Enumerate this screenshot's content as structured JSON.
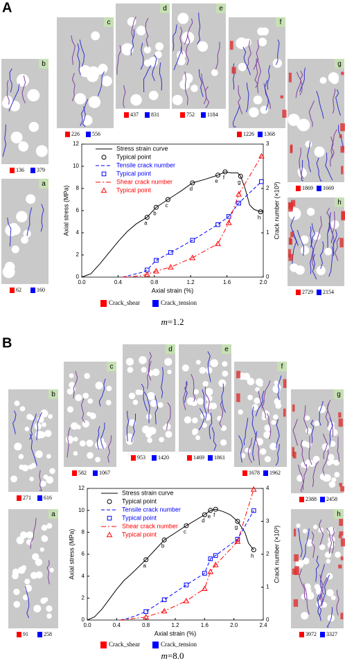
{
  "panels": [
    {
      "label": "A",
      "caption_var": "m",
      "caption_value": "=1.2",
      "crack_legend": [
        {
          "name": "Crack_shear",
          "color": "#ff0000"
        },
        {
          "name": "Crack_tension",
          "color": "#0000ff"
        }
      ],
      "specimens": [
        {
          "label": "a",
          "shear": 62,
          "tension": 160
        },
        {
          "label": "b",
          "shear": 136,
          "tension": 379
        },
        {
          "label": "c",
          "shear": 226,
          "tension": 556
        },
        {
          "label": "d",
          "shear": 437,
          "tension": 831
        },
        {
          "label": "e",
          "shear": 752,
          "tension": 1184
        },
        {
          "label": "f",
          "shear": 1226,
          "tension": 1368
        },
        {
          "label": "g",
          "shear": 1869,
          "tension": 1669
        },
        {
          "label": "h",
          "shear": 2729,
          "tension": 2154
        }
      ]
    },
    {
      "label": "B",
      "caption_var": "m",
      "caption_value": "=8.0",
      "crack_legend": [
        {
          "name": "Crack_shear",
          "color": "#ff0000"
        },
        {
          "name": "Crack_tension",
          "color": "#0000ff"
        }
      ],
      "specimens": [
        {
          "label": "a",
          "shear": 91,
          "tension": 258
        },
        {
          "label": "b",
          "shear": 271,
          "tension": 616
        },
        {
          "label": "c",
          "shear": 582,
          "tension": 1067
        },
        {
          "label": "d",
          "shear": 953,
          "tension": 1420
        },
        {
          "label": "e",
          "shear": 1469,
          "tension": 1861
        },
        {
          "label": "f",
          "shear": 1678,
          "tension": 1962
        },
        {
          "label": "g",
          "shear": 2388,
          "tension": 2458
        },
        {
          "label": "h",
          "shear": 3972,
          "tension": 3327
        }
      ]
    }
  ],
  "chart_data": [
    {
      "type": "line",
      "x_label": "Axial strain (%)",
      "y_label": "Axial stress (MPa)",
      "y2_label": "Crack number (×10³)",
      "xlim": [
        0,
        2.0
      ],
      "xticks": [
        {
          "value": 0,
          "label": "0.0"
        },
        0.4,
        0.8,
        1.2,
        1.6,
        {
          "value": 2.0,
          "label": "2.0"
        }
      ],
      "ylim": [
        0,
        12
      ],
      "yticks": [
        0,
        2,
        4,
        6,
        8,
        10,
        12
      ],
      "y2lim": [
        0,
        3
      ],
      "y2ticks": [
        0,
        1,
        2,
        3
      ],
      "series": [
        {
          "name": "Stress strain curve",
          "color": "#000000",
          "style": "solid",
          "x": [
            0,
            0.1,
            0.2,
            0.3,
            0.4,
            0.5,
            0.6,
            0.72,
            0.82,
            0.95,
            1.1,
            1.22,
            1.35,
            1.5,
            1.58,
            1.65,
            1.72,
            1.75,
            1.8,
            1.85,
            1.9,
            1.97,
            2.0
          ],
          "values": [
            0,
            0.3,
            1.2,
            2.2,
            3.2,
            4.1,
            4.8,
            5.4,
            6.3,
            7.0,
            7.8,
            8.5,
            8.8,
            9.2,
            9.5,
            9.4,
            9.4,
            9.1,
            8.0,
            6.5,
            6.1,
            5.9,
            6.0
          ]
        },
        {
          "name": "Typical point",
          "color": "#000000",
          "marker": "circle",
          "x": [
            0.72,
            0.82,
            0.95,
            1.22,
            1.5,
            1.58,
            1.75,
            1.97
          ],
          "values": [
            5.4,
            6.3,
            7.0,
            8.5,
            9.2,
            9.5,
            9.1,
            5.9
          ],
          "point_labels": [
            "a",
            "b",
            "c",
            "d",
            "e",
            "f",
            "g",
            "h"
          ]
        },
        {
          "name": "Tensile crack number",
          "color": "#0000ff",
          "style": "dashed",
          "axis": "y2",
          "x": [
            0.45,
            0.55,
            0.65,
            0.72,
            0.82,
            0.98,
            1.22,
            1.5,
            1.62,
            1.73,
            1.98
          ],
          "values": [
            0,
            0.05,
            0.1,
            0.16,
            0.379,
            0.556,
            0.831,
            1.184,
            1.368,
            1.669,
            2.154
          ]
        },
        {
          "name": "Typical point",
          "color": "#0000ff",
          "marker": "square",
          "axis": "y2",
          "x": [
            0.72,
            0.82,
            0.98,
            1.22,
            1.5,
            1.62,
            1.73,
            1.98
          ],
          "values": [
            0.16,
            0.379,
            0.556,
            0.831,
            1.184,
            1.368,
            1.669,
            2.154
          ]
        },
        {
          "name": "Shear crack number",
          "color": "#ff0000",
          "style": "dashdot",
          "axis": "y2",
          "x": [
            0.45,
            0.55,
            0.65,
            0.72,
            0.82,
            0.98,
            1.22,
            1.5,
            1.62,
            1.73,
            1.98
          ],
          "values": [
            0,
            0.01,
            0.03,
            0.062,
            0.136,
            0.226,
            0.437,
            0.752,
            1.226,
            1.869,
            2.729
          ]
        },
        {
          "name": "Typical point",
          "color": "#ff0000",
          "marker": "triangle",
          "axis": "y2",
          "x": [
            0.72,
            0.82,
            0.98,
            1.22,
            1.5,
            1.62,
            1.73,
            1.98
          ],
          "values": [
            0.062,
            0.136,
            0.226,
            0.437,
            0.752,
            1.226,
            1.869,
            2.729
          ]
        }
      ]
    },
    {
      "type": "line",
      "x_label": "Axial strain (%)",
      "y_label": "Axial stress (MPa)",
      "y2_label": "Crack number (×10³)",
      "xlim": [
        0,
        2.4
      ],
      "xticks": [
        {
          "value": 0,
          "label": "0.0"
        },
        0.4,
        0.8,
        1.2,
        1.6,
        {
          "value": 2.0,
          "label": "2.0"
        },
        2.4
      ],
      "ylim": [
        0,
        12
      ],
      "yticks": [
        0,
        2,
        4,
        6,
        8,
        10,
        12
      ],
      "y2lim": [
        0,
        4
      ],
      "y2ticks": [
        0,
        1,
        2,
        3,
        4
      ],
      "series": [
        {
          "name": "Stress strain curve",
          "color": "#000000",
          "style": "solid",
          "x": [
            0,
            0.1,
            0.2,
            0.3,
            0.4,
            0.5,
            0.6,
            0.8,
            1.05,
            1.35,
            1.6,
            1.68,
            1.75,
            1.85,
            1.95,
            2.05,
            2.15,
            2.2,
            2.27
          ],
          "values": [
            0,
            0.3,
            1.0,
            1.9,
            2.8,
            3.6,
            4.2,
            5.5,
            7.3,
            8.6,
            9.6,
            10.0,
            10.1,
            9.9,
            9.6,
            9.0,
            8.0,
            7.0,
            6.4
          ]
        },
        {
          "name": "Typical point",
          "color": "#000000",
          "marker": "circle",
          "x": [
            0.8,
            1.05,
            1.35,
            1.6,
            1.68,
            1.75,
            2.05,
            2.27
          ],
          "values": [
            5.5,
            7.3,
            8.6,
            9.6,
            10.0,
            10.1,
            9.0,
            6.4
          ],
          "point_labels": [
            "a",
            "b",
            "c",
            "d",
            "e",
            "f",
            "g",
            "h"
          ]
        },
        {
          "name": "Tensile crack number",
          "color": "#0000ff",
          "style": "dashed",
          "axis": "y2",
          "x": [
            0.45,
            0.55,
            0.65,
            0.8,
            1.05,
            1.35,
            1.6,
            1.68,
            1.75,
            2.05,
            2.27
          ],
          "values": [
            0,
            0.05,
            0.12,
            0.258,
            0.616,
            1.067,
            1.42,
            1.861,
            1.962,
            2.458,
            3.327
          ]
        },
        {
          "name": "Typical point",
          "color": "#0000ff",
          "marker": "square",
          "axis": "y2",
          "x": [
            0.8,
            1.05,
            1.35,
            1.6,
            1.68,
            1.75,
            2.05,
            2.27
          ],
          "values": [
            0.258,
            0.616,
            1.067,
            1.42,
            1.861,
            1.962,
            2.458,
            3.327
          ]
        },
        {
          "name": "Shear crack number",
          "color": "#ff0000",
          "style": "dashdot",
          "axis": "y2",
          "x": [
            0.45,
            0.55,
            0.65,
            0.8,
            1.05,
            1.35,
            1.6,
            1.68,
            1.75,
            2.05,
            2.27
          ],
          "values": [
            0,
            0.02,
            0.05,
            0.091,
            0.271,
            0.582,
            0.953,
            1.469,
            1.678,
            2.388,
            3.972
          ]
        },
        {
          "name": "Typical point",
          "color": "#ff0000",
          "marker": "triangle",
          "axis": "y2",
          "x": [
            0.8,
            1.05,
            1.35,
            1.6,
            1.68,
            1.75,
            2.05,
            2.27
          ],
          "values": [
            0.091,
            0.271,
            0.582,
            0.953,
            1.469,
            1.678,
            2.388,
            3.972
          ]
        }
      ]
    }
  ]
}
